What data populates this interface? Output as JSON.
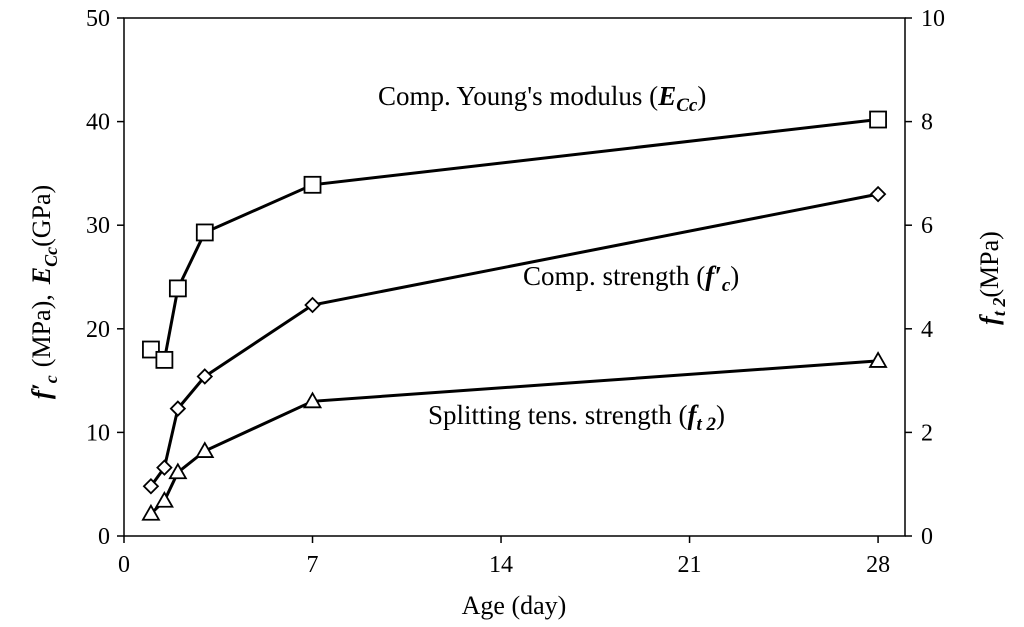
{
  "chart_data": {
    "type": "line",
    "x_label": "Age (day)",
    "x_ticks": [
      0,
      7,
      14,
      21,
      28
    ],
    "x_lim": [
      0,
      29
    ],
    "y_left": {
      "ticks": [
        0,
        10,
        20,
        30,
        40,
        50
      ],
      "lim": [
        0,
        50
      ],
      "label_parts": [
        "f",
        "′",
        "c",
        "(MPa),",
        "E",
        "Cc",
        "(GPa)"
      ]
    },
    "y_right": {
      "ticks": [
        0,
        2,
        4,
        6,
        8,
        10
      ],
      "lim": [
        0,
        10
      ],
      "label_parts": [
        "f",
        "t 2",
        "(MPa)"
      ]
    },
    "series": [
      {
        "name": "Comp. Young's modulus",
        "axis": "left",
        "marker": "square",
        "x": [
          1,
          1.5,
          2,
          3,
          7,
          28
        ],
        "y": [
          18.0,
          17.0,
          23.9,
          29.3,
          33.9,
          40.2
        ]
      },
      {
        "name": "Comp. strength",
        "axis": "left",
        "marker": "diamond",
        "x": [
          1,
          1.5,
          2,
          3,
          7,
          28
        ],
        "y": [
          4.8,
          6.6,
          12.3,
          15.4,
          22.3,
          33.0
        ]
      },
      {
        "name": "Splitting tens. strength",
        "axis": "right",
        "marker": "triangle",
        "x": [
          1,
          1.5,
          2,
          3,
          7,
          28
        ],
        "y": [
          0.43,
          0.68,
          1.23,
          1.64,
          2.6,
          3.38
        ]
      }
    ],
    "annotations": [
      {
        "text": "Comp. Young's modulus (",
        "symbol": "E",
        "sub": "Cc",
        "close": ")"
      },
      {
        "text": "Comp. strength (",
        "symbol": "f′",
        "sub": "c",
        "close": ")"
      },
      {
        "text": "Splitting tens. strength (",
        "symbol": "f",
        "sub": "t 2",
        "close": ")"
      }
    ]
  }
}
